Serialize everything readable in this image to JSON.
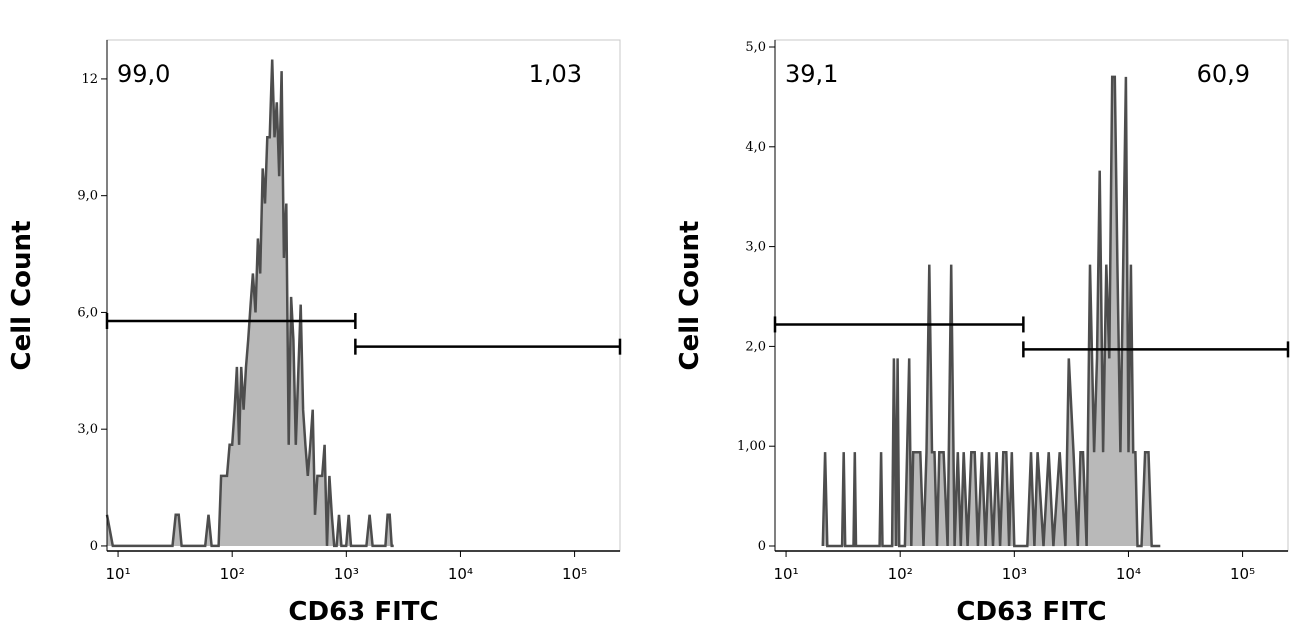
{
  "chart_data": [
    {
      "type": "line",
      "xlabel": "CD63 FITC",
      "ylabel": "Cell Count",
      "xscale": "log",
      "line_color": "#4d4d4d",
      "fill_color": "#b9b9b9",
      "xlim": [
        8,
        250000
      ],
      "ylim": [
        -0.13,
        13.0
      ],
      "xticks": [
        {
          "value": 10,
          "label": "10¹"
        },
        {
          "value": 100,
          "label": "10²"
        },
        {
          "value": 1000,
          "label": "10³"
        },
        {
          "value": 10000,
          "label": "10⁴"
        },
        {
          "value": 100000,
          "label": "10⁵"
        }
      ],
      "yticks": [
        0,
        {
          "value": 3,
          "label": "3,0"
        },
        {
          "value": 6,
          "label": "6,0"
        },
        {
          "value": 9,
          "label": "9,0"
        },
        12
      ],
      "x": [
        8,
        9,
        30,
        32,
        34,
        36,
        58,
        62,
        66,
        76,
        80,
        85,
        90,
        95,
        100,
        105,
        110,
        115,
        120,
        126,
        132,
        138,
        145,
        152,
        160,
        168,
        176,
        185,
        194,
        203,
        213,
        224,
        235,
        246,
        258,
        271,
        284,
        298,
        313,
        328,
        344,
        361,
        379,
        398,
        418,
        438,
        460,
        483,
        507,
        532,
        558,
        586,
        615,
        645,
        677,
        711,
        746,
        783,
        822,
        862,
        905,
        950,
        997,
        1050,
        1100,
        1500,
        1600,
        1700,
        2200,
        2300,
        2400,
        2500,
        2600
      ],
      "values": [
        0.8,
        0,
        0,
        0.8,
        0.8,
        0,
        0,
        0.8,
        0,
        0,
        1.8,
        1.8,
        1.8,
        2.6,
        2.6,
        3.5,
        4.6,
        2.6,
        4.6,
        3.5,
        4.6,
        5.3,
        6.2,
        7.0,
        6.0,
        7.9,
        7.0,
        9.7,
        8.8,
        10.5,
        10.5,
        12.5,
        10.5,
        11.4,
        9.5,
        12.2,
        7.4,
        8.8,
        2.6,
        6.4,
        5.3,
        2.6,
        4.4,
        6.2,
        3.5,
        2.6,
        1.8,
        2.6,
        3.5,
        0.8,
        1.8,
        1.8,
        1.8,
        2.6,
        0,
        1.8,
        0.8,
        0,
        0,
        0.8,
        0,
        0,
        0,
        0.8,
        0,
        0,
        0.8,
        0,
        0,
        0.8,
        0.8,
        0,
        0
      ],
      "gates": [
        {
          "label": "99,0",
          "x": [
            8,
            1200
          ],
          "y": 5.78
        },
        {
          "label": "1,03",
          "x": [
            1200,
            250000
          ],
          "y": 5.12
        }
      ]
    },
    {
      "type": "line",
      "xlabel": "CD63 FITC",
      "ylabel": "Cell Count",
      "xscale": "log",
      "line_color": "#4d4d4d",
      "fill_color": "#b9b9b9",
      "xlim": [
        8,
        250000
      ],
      "ylim": [
        -0.05,
        5.07
      ],
      "xticks": [
        {
          "value": 10,
          "label": "10¹"
        },
        {
          "value": 100,
          "label": "10²"
        },
        {
          "value": 1000,
          "label": "10³"
        },
        {
          "value": 10000,
          "label": "10⁴"
        },
        {
          "value": 100000,
          "label": "10⁵"
        }
      ],
      "yticks": [
        0,
        {
          "value": 1,
          "label": "1,00"
        },
        {
          "value": 2,
          "label": "2,0"
        },
        {
          "value": 3,
          "label": "3,0"
        },
        {
          "value": 4,
          "label": "4,0"
        },
        {
          "value": 5,
          "label": "5,0"
        }
      ],
      "x": [
        21,
        22,
        23,
        31,
        32,
        33,
        39,
        40,
        41,
        66,
        68,
        70,
        85,
        88,
        92,
        95,
        98,
        110,
        115,
        120,
        125,
        130,
        150,
        160,
        170,
        180,
        190,
        200,
        210,
        220,
        240,
        260,
        280,
        300,
        320,
        340,
        360,
        390,
        420,
        450,
        480,
        520,
        560,
        600,
        650,
        700,
        750,
        800,
        850,
        900,
        950,
        1000,
        1300,
        1400,
        1500,
        1600,
        1800,
        2000,
        2200,
        2500,
        2800,
        3000,
        3300,
        3600,
        3800,
        4000,
        4300,
        4600,
        5000,
        5300,
        5600,
        6000,
        6400,
        6800,
        7200,
        7600,
        8000,
        8500,
        9000,
        9500,
        10000,
        10500,
        11000,
        11500,
        12000,
        13000,
        14000,
        15000,
        16000,
        17000,
        18000,
        19000
      ],
      "values": [
        0,
        0.94,
        0,
        0,
        0.94,
        0,
        0,
        0.94,
        0,
        0,
        0.94,
        0,
        0,
        1.88,
        0,
        1.88,
        0,
        0,
        0.94,
        1.88,
        0,
        0.94,
        0.94,
        0,
        0.94,
        2.82,
        0.94,
        0.94,
        0,
        0.94,
        0.94,
        0,
        2.82,
        0,
        0.94,
        0,
        0.94,
        0,
        0.94,
        0.94,
        0,
        0.94,
        0,
        0.94,
        0,
        0.94,
        0,
        0.94,
        0.94,
        0,
        0.94,
        0,
        0,
        0.94,
        0,
        0.94,
        0,
        0.94,
        0,
        0.94,
        0,
        1.88,
        0.94,
        0,
        0.94,
        0.94,
        0,
        2.82,
        0.94,
        1.88,
        3.76,
        0.94,
        2.82,
        1.88,
        4.7,
        4.7,
        2.82,
        0.94,
        2.82,
        4.7,
        0.94,
        2.82,
        0.94,
        0.94,
        0,
        0,
        0.94,
        0.94,
        0,
        0,
        0,
        0
      ],
      "gates": [
        {
          "label": "39,1",
          "x": [
            8,
            1200
          ],
          "y": 2.22
        },
        {
          "label": "60,9",
          "x": [
            1200,
            250000
          ],
          "y": 1.97
        }
      ]
    }
  ]
}
